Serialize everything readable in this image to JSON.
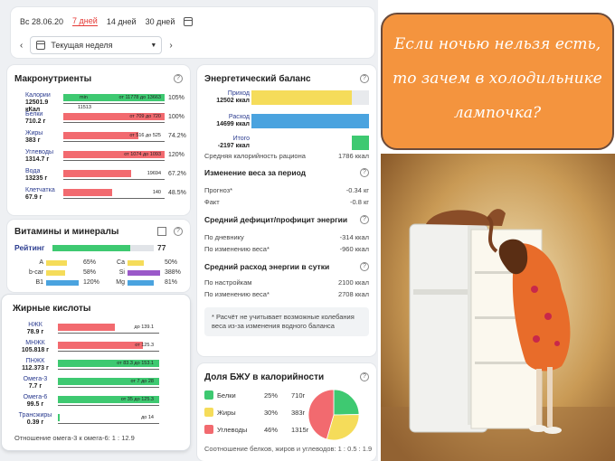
{
  "topbar": {
    "date": "Вс 28.06.20",
    "tabs": [
      "7 дней",
      "14 дней",
      "30 дней"
    ],
    "period": "Текущая неделя"
  },
  "macros": {
    "title": "Макронутриенты",
    "rows": [
      {
        "name": "Калории",
        "value": "12501.9",
        "unit": "кКал",
        "fill_pct": 105,
        "color": "#3ec971",
        "t1": "min",
        "t2": "от 11778 до 13663",
        "extra": "11513",
        "pct": "105%"
      },
      {
        "name": "Белки",
        "value": "710.2 г",
        "unit": "",
        "fill_pct": 100,
        "color": "#f26a6f",
        "t1": "",
        "t2": "от 709 до 720",
        "extra": "",
        "pct": "100%"
      },
      {
        "name": "Жиры",
        "value": "383 г",
        "unit": "",
        "fill_pct": 74,
        "color": "#f26a6f",
        "t1": "",
        "t2": "от 516 до 525",
        "extra": "",
        "pct": "74.2%"
      },
      {
        "name": "Углеводы",
        "value": "1314.7 г",
        "unit": "",
        "fill_pct": 100,
        "color": "#f26a6f",
        "t1": "",
        "t2": "от 1074 до 1093",
        "extra": "",
        "pct": "120%"
      },
      {
        "name": "Вода",
        "value": "13235 г",
        "unit": "",
        "fill_pct": 67,
        "color": "#f26a6f",
        "t1": "",
        "t2": "19694",
        "extra": "",
        "pct": "67.2%"
      },
      {
        "name": "Клетчатка",
        "value": "67.9 г",
        "unit": "",
        "fill_pct": 48,
        "color": "#f26a6f",
        "t1": "",
        "t2": "140",
        "extra": "",
        "pct": "48.5%"
      }
    ]
  },
  "vitamins": {
    "title": "Витамины и минералы",
    "rating_label": "Рейтинг",
    "rating_value": "77",
    "rating_fill": 0.77,
    "items": [
      {
        "name": "A",
        "pct": "65%",
        "fill": 0.65,
        "color": "#f5dc5a"
      },
      {
        "name": "Ca",
        "pct": "50%",
        "fill": 0.5,
        "color": "#f5dc5a"
      },
      {
        "name": "b-car",
        "pct": "58%",
        "fill": 0.58,
        "color": "#f5dc5a"
      },
      {
        "name": "Si",
        "pct": "388%",
        "fill": 1,
        "color": "#9b59c9"
      },
      {
        "name": "B1",
        "pct": "120%",
        "fill": 1,
        "color": "#4aa3df"
      },
      {
        "name": "Mg",
        "pct": "81%",
        "fill": 0.81,
        "color": "#4aa3df"
      }
    ]
  },
  "fatty": {
    "title": "Жирные кислоты",
    "rows": [
      {
        "name": "НЖК",
        "value": "78.9 г",
        "fill_pct": 56,
        "color": "#f26a6f",
        "t2": "до 139.1"
      },
      {
        "name": "МНЖК",
        "value": "105.818 г",
        "fill_pct": 84,
        "color": "#f26a6f",
        "t2": "от 125.3"
      },
      {
        "name": "ПНЖК",
        "value": "112.373 г",
        "fill_pct": 100,
        "color": "#3ec971",
        "t2": "от 83.3 до 153.1"
      },
      {
        "name": "Омега-3",
        "value": "7.7 г",
        "fill_pct": 100,
        "color": "#3ec971",
        "t2": "от 7 до 28"
      },
      {
        "name": "Омега-6",
        "value": "99.5 г",
        "fill_pct": 100,
        "color": "#3ec971",
        "t2": "от 35 до 125.3"
      },
      {
        "name": "Трансжиры",
        "value": "0.39 г",
        "fill_pct": 2,
        "color": "#3ec971",
        "t2": "до 14"
      }
    ],
    "ratio": "Отношение омега-3 к омега-6: 1 : 12.9"
  },
  "energy": {
    "title": "Энергетический баланс",
    "intake_label": "Приход",
    "intake_value": "12502 ккал",
    "intake_fill": 0.85,
    "spend_label": "Расход",
    "spend_value": "14699 ккал",
    "spend_fill": 1.0,
    "total_label": "Итого",
    "total_value": "-2197 ккал",
    "total_fill": 0.15,
    "avg_label": "Средняя калорийность рациона",
    "avg_value": "1786 ккал",
    "weight_head": "Изменение веса за период",
    "forecast_label": "Прогноз*",
    "forecast_value": "-0.34 кг",
    "fact_label": "Факт",
    "fact_value": "-0.8 кг",
    "deficit_head": "Средний дефицит/профицит энергии",
    "diary_label": "По дневнику",
    "diary_value": "-314 ккал",
    "wchange_label": "По изменению веса*",
    "wchange_value": "-960 ккал",
    "spend_head": "Средний расход энергии в сутки",
    "settings_label": "По настройкам",
    "settings_value": "2100 ккал",
    "wchange2_label": "По изменению веса*",
    "wchange2_value": "2708 ккал",
    "note": "* Расчёт не учитывает возможные колебания веса из-за изменения водного баланса"
  },
  "bju": {
    "title": "Доля БЖУ в калорийности",
    "items": [
      {
        "name": "Белки",
        "pct": "25%",
        "grams": "710г",
        "value": 25,
        "color": "#3ec971"
      },
      {
        "name": "Жиры",
        "pct": "30%",
        "grams": "383г",
        "value": 30,
        "color": "#f5dc5a"
      },
      {
        "name": "Углеводы",
        "pct": "46%",
        "grams": "1315г",
        "value": 46,
        "color": "#f26a6f"
      }
    ],
    "footer": "Соотношение белков, жиров и углеводов: 1 : 0.5 : 1.9"
  },
  "bubble": {
    "line1": "Если ночью нельзя есть,",
    "line2": "то зачем в холодильнике",
    "line3": "лампочка?"
  }
}
